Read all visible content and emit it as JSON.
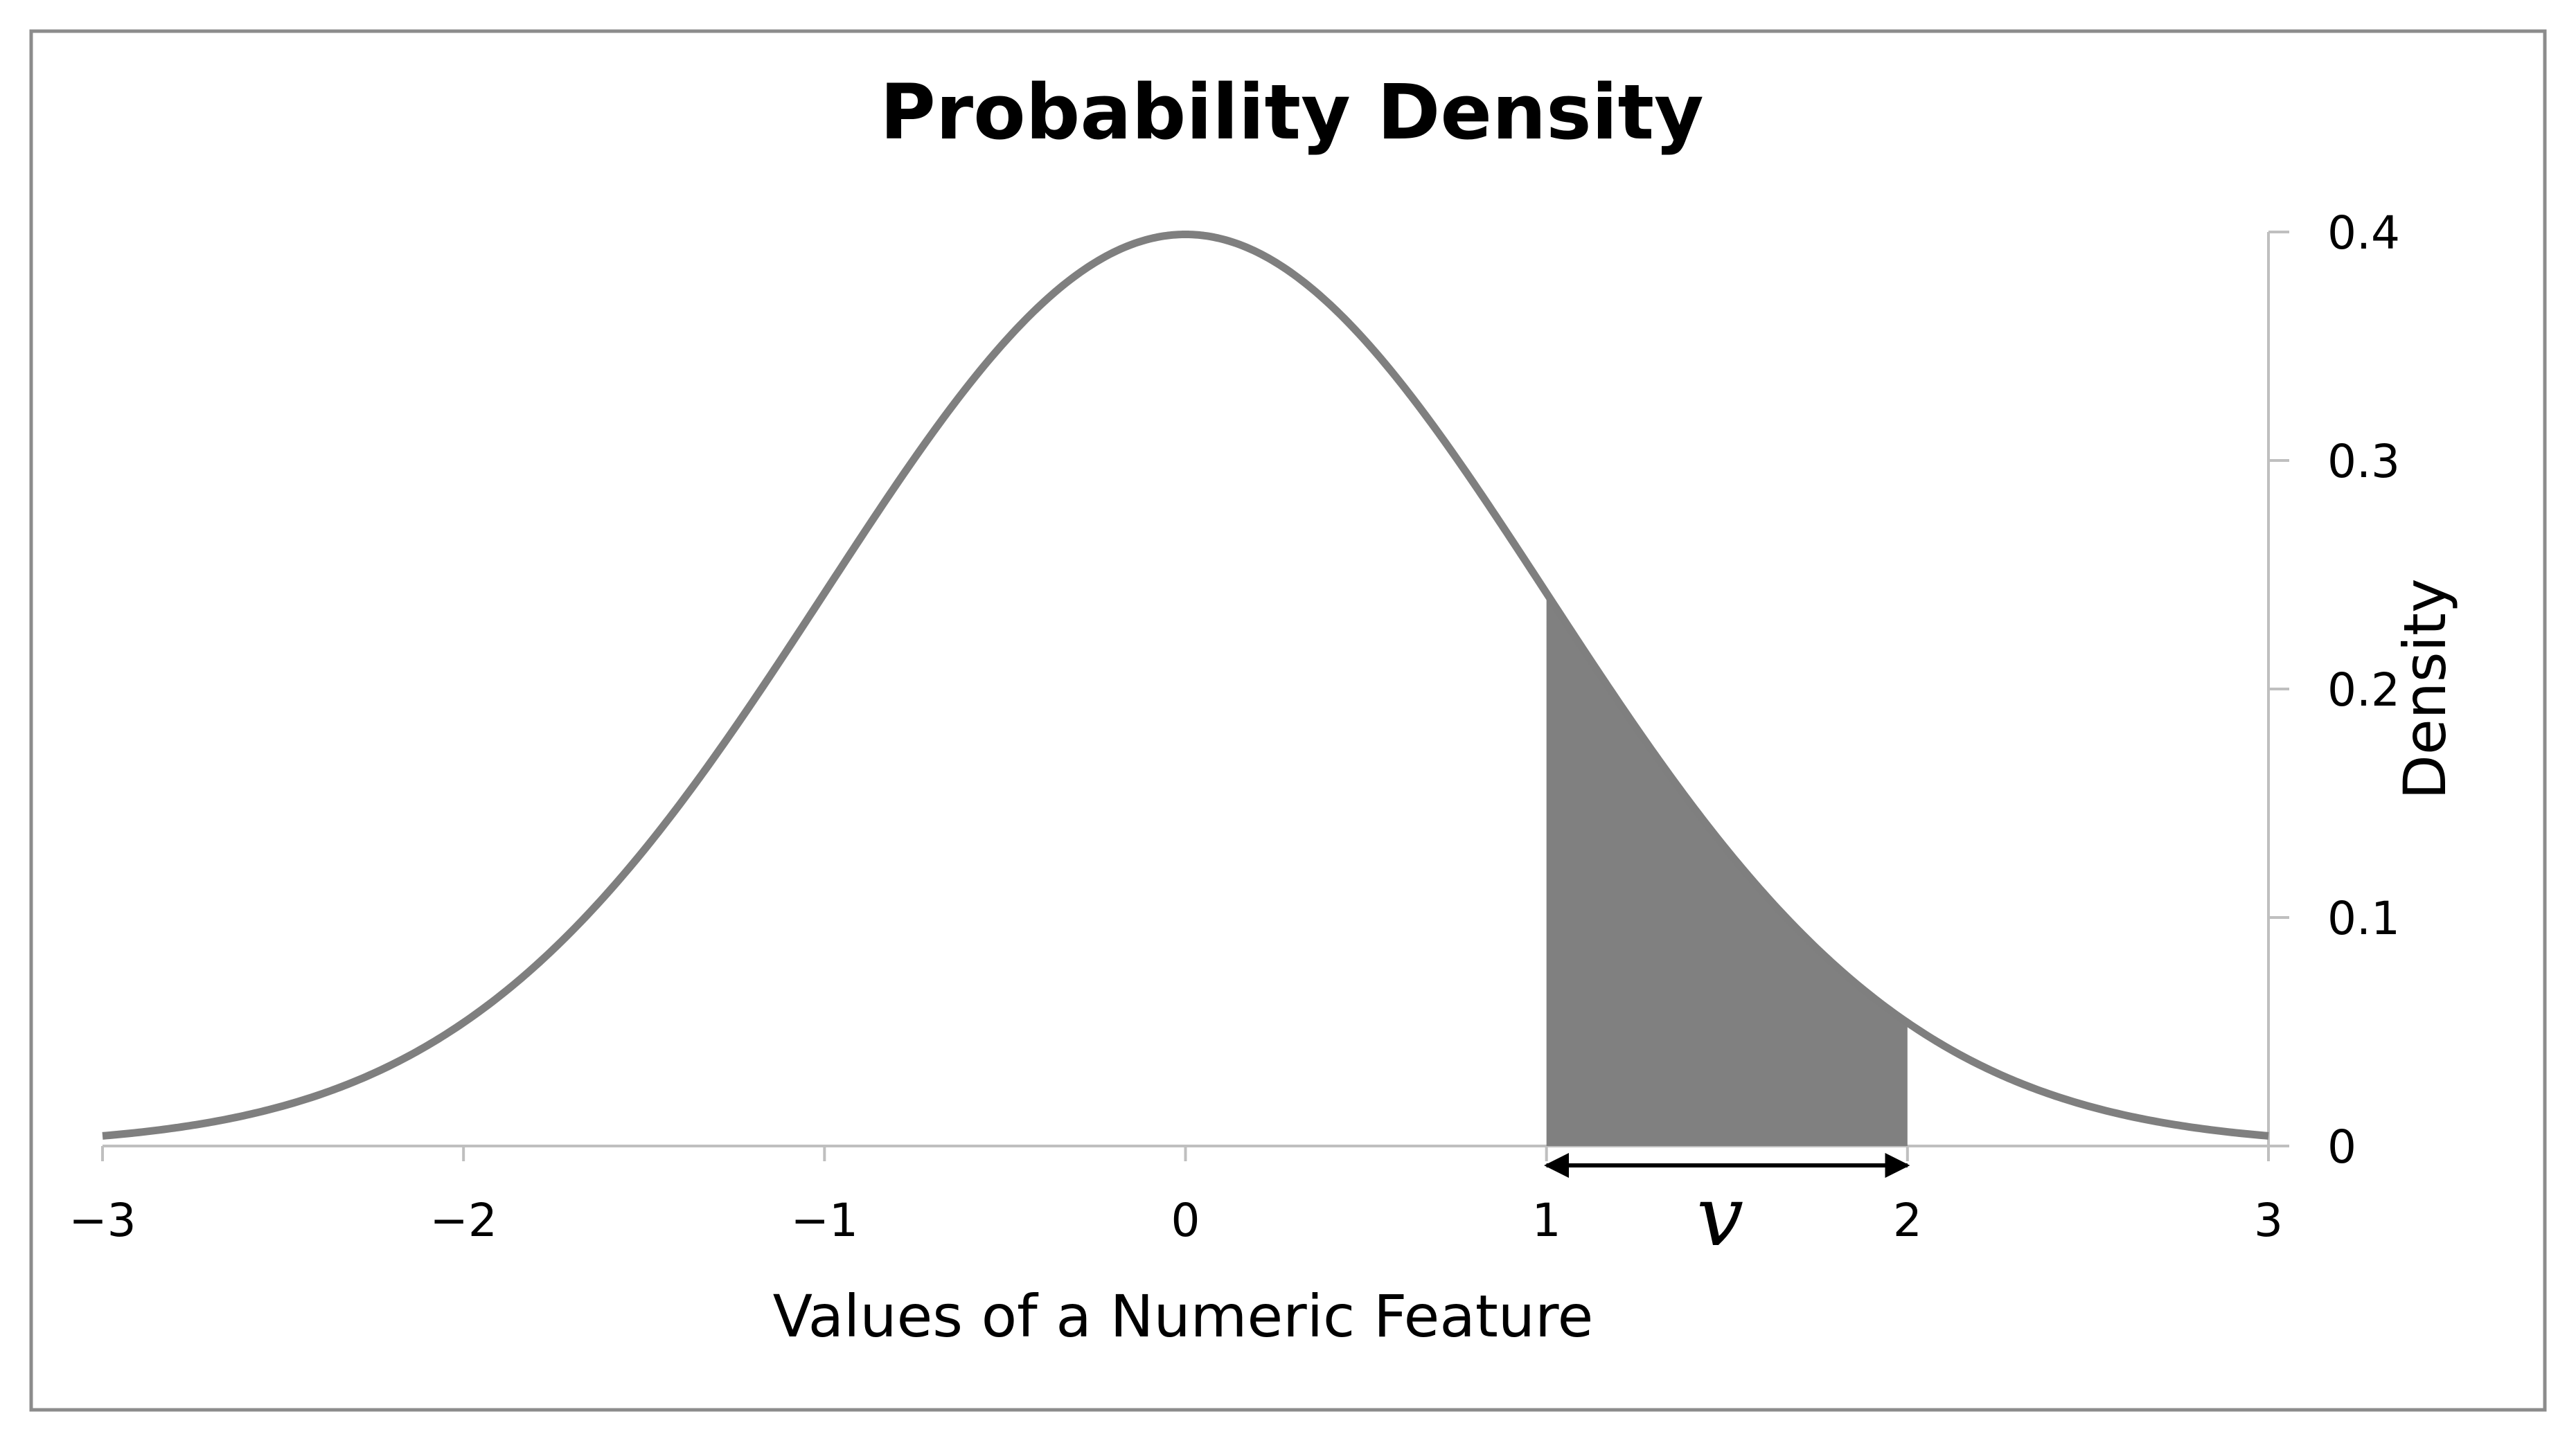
{
  "chart_data": {
    "type": "area",
    "title": "Probability Density",
    "xlabel": "Values of a Numeric Feature",
    "ylabel": "Density",
    "xlim": [
      -3,
      3
    ],
    "ylim": [
      0,
      0.4
    ],
    "y_axis_position": "right",
    "grid": false,
    "legend": "none",
    "series": [
      {
        "curve": "standard normal density",
        "x": [
          -3,
          -2.5,
          -2,
          -1.5,
          -1,
          -0.5,
          0,
          0.5,
          1,
          1.5,
          2,
          2.5,
          3
        ],
        "y": [
          0.0044,
          0.0175,
          0.054,
          0.1295,
          0.242,
          0.3521,
          0.3989,
          0.3521,
          0.242,
          0.1295,
          0.054,
          0.0175,
          0.0044
        ]
      }
    ],
    "shaded_region": {
      "x_from": 1,
      "x_to": 2
    },
    "annotation": {
      "text": "v",
      "spans": [
        1,
        2
      ]
    },
    "x_ticks": [
      {
        "value": -3,
        "label": "−3"
      },
      {
        "value": -2,
        "label": "−2"
      },
      {
        "value": -1,
        "label": "−1"
      },
      {
        "value": 0,
        "label": "0"
      },
      {
        "value": 1,
        "label": "1"
      },
      {
        "value": 2,
        "label": "2"
      },
      {
        "value": 3,
        "label": "3"
      }
    ],
    "y_ticks": [
      {
        "value": 0,
        "label": "0"
      },
      {
        "value": 0.1,
        "label": "0.1"
      },
      {
        "value": 0.2,
        "label": "0.2"
      },
      {
        "value": 0.3,
        "label": "0.3"
      },
      {
        "value": 0.4,
        "label": "0.4"
      }
    ],
    "colors": {
      "curve": "#7f7f7f",
      "fill": "#808080",
      "axis": "#bfbfbf",
      "frame": "#8c8c8c"
    }
  }
}
